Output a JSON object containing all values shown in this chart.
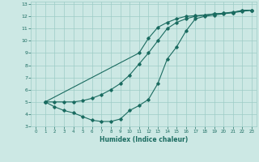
{
  "xlabel": "Humidex (Indice chaleur)",
  "xlim": [
    -0.5,
    23.5
  ],
  "ylim": [
    3,
    13.2
  ],
  "yticks": [
    3,
    4,
    5,
    6,
    7,
    8,
    9,
    10,
    11,
    12,
    13
  ],
  "xticks": [
    0,
    1,
    2,
    3,
    4,
    5,
    6,
    7,
    8,
    9,
    10,
    11,
    12,
    13,
    14,
    15,
    16,
    17,
    18,
    19,
    20,
    21,
    22,
    23
  ],
  "bg_color": "#cce8e4",
  "grid_color": "#9eccc6",
  "line_color": "#1a6b60",
  "line1_x": [
    1,
    2,
    3,
    4,
    5,
    6,
    7,
    8,
    9,
    10,
    11,
    12,
    13,
    14,
    15,
    16,
    17,
    18,
    19,
    20,
    21,
    22,
    23
  ],
  "line1_y": [
    5.0,
    5.0,
    5.0,
    5.0,
    5.1,
    5.3,
    5.6,
    6.0,
    6.5,
    7.2,
    8.1,
    9.0,
    10.0,
    11.0,
    11.5,
    11.8,
    12.0,
    12.1,
    12.2,
    12.25,
    12.3,
    12.4,
    12.5
  ],
  "line2_x": [
    1,
    2,
    3,
    4,
    5,
    6,
    7,
    8,
    9,
    10,
    11,
    12,
    13,
    14,
    15,
    16,
    17,
    18,
    19,
    20,
    21,
    22,
    23
  ],
  "line2_y": [
    5.0,
    4.6,
    4.3,
    4.1,
    3.8,
    3.5,
    3.4,
    3.4,
    3.6,
    4.3,
    4.7,
    5.2,
    6.5,
    8.5,
    9.5,
    10.8,
    11.8,
    12.0,
    12.1,
    12.2,
    12.3,
    12.5,
    12.5
  ],
  "line3_x": [
    1,
    11,
    12,
    13,
    14,
    15,
    16,
    17,
    18,
    19,
    20,
    21,
    22,
    23
  ],
  "line3_y": [
    5.0,
    9.0,
    10.2,
    11.1,
    11.5,
    11.8,
    12.0,
    12.05,
    12.1,
    12.2,
    12.25,
    12.35,
    12.45,
    12.5
  ]
}
